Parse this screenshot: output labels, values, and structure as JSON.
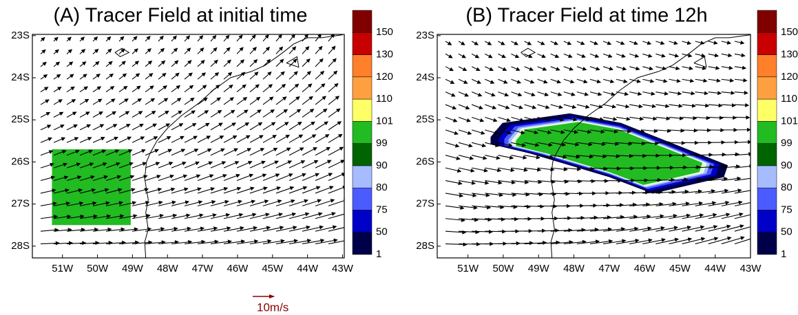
{
  "chart_data": [
    {
      "type": "map",
      "title": "(A) Tracer Field at initial time",
      "xlim": [
        -51.86,
        -42.95
      ],
      "ylim": [
        -28.28,
        -22.97
      ],
      "xticks": [
        {
          "value": -51,
          "label": "51W"
        },
        {
          "value": -50,
          "label": "50W"
        },
        {
          "value": -49,
          "label": "49W"
        },
        {
          "value": -48,
          "label": "48W"
        },
        {
          "value": -47,
          "label": "47W"
        },
        {
          "value": -46,
          "label": "46W"
        },
        {
          "value": -45,
          "label": "45W"
        },
        {
          "value": -44,
          "label": "44W"
        },
        {
          "value": -43,
          "label": "43W"
        }
      ],
      "yticks": [
        {
          "value": -23,
          "label": "23S"
        },
        {
          "value": -24,
          "label": "24S"
        },
        {
          "value": -25,
          "label": "25S"
        },
        {
          "value": -26,
          "label": "26S"
        },
        {
          "value": -27,
          "label": "27S"
        },
        {
          "value": -28,
          "label": "28S"
        }
      ],
      "colorbar": {
        "levels": [
          1,
          50,
          75,
          80,
          90,
          99,
          101,
          110,
          120,
          130,
          150
        ],
        "colors": [
          "#00004a",
          "#0000c8",
          "#4a5cff",
          "#a6bcff",
          "#006400",
          "#22bb22",
          "#ffff66",
          "#ffa040",
          "#ff7f2a",
          "#c80000",
          "#800000"
        ]
      }
    },
    {
      "type": "map",
      "title": "(B) Tracer Field at time 12h",
      "xlim": [
        -51.87,
        -43
      ],
      "ylim": [
        -28.28,
        -22.97
      ],
      "xticks": [
        {
          "value": -51,
          "label": "51W"
        },
        {
          "value": -50,
          "label": "50W"
        },
        {
          "value": -49,
          "label": "49W"
        },
        {
          "value": -48,
          "label": "48W"
        },
        {
          "value": -47,
          "label": "47W"
        },
        {
          "value": -46,
          "label": "46W"
        },
        {
          "value": -45,
          "label": "45W"
        },
        {
          "value": -44,
          "label": "44W"
        },
        {
          "value": -43,
          "label": "43W"
        }
      ],
      "yticks": [
        {
          "value": -23,
          "label": "23S"
        },
        {
          "value": -24,
          "label": "24S"
        },
        {
          "value": -25,
          "label": "25S"
        },
        {
          "value": -26,
          "label": "26S"
        },
        {
          "value": -27,
          "label": "27S"
        },
        {
          "value": -28,
          "label": "28S"
        }
      ],
      "colorbar": {
        "levels": [
          1,
          50,
          75,
          80,
          90,
          99,
          101,
          110,
          120,
          130,
          150
        ],
        "colors": [
          "#00004a",
          "#0000c8",
          "#4a5cff",
          "#a6bcff",
          "#006400",
          "#22bb22",
          "#ffff66",
          "#ffa040",
          "#ff7f2a",
          "#c80000",
          "#800000"
        ]
      }
    }
  ],
  "reference_vector_label": "10m/s"
}
